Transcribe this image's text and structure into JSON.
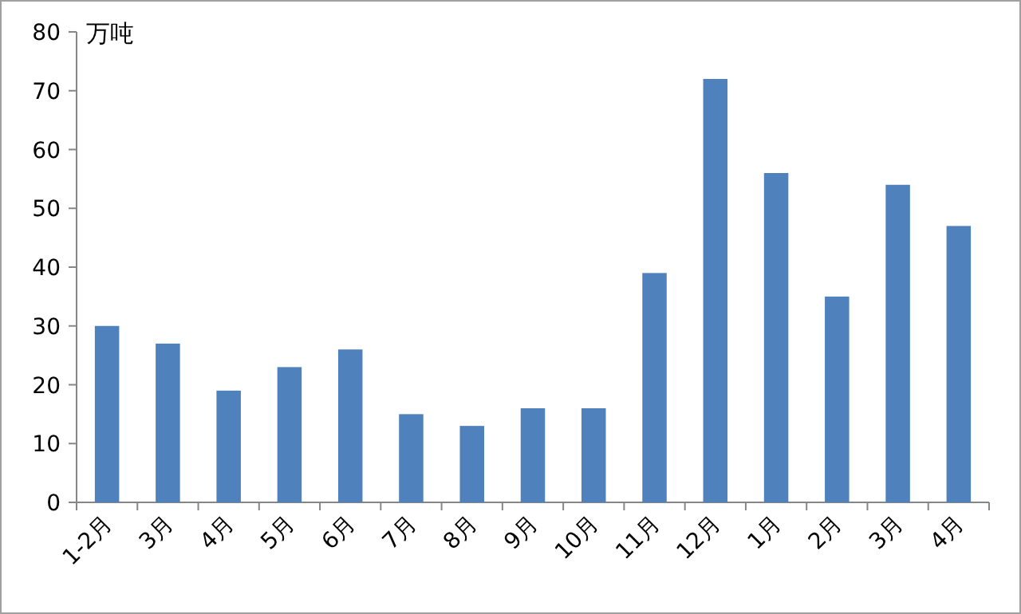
{
  "chart_data": {
    "type": "bar",
    "ylabel": "万吨",
    "categories": [
      "1-2月",
      "3月",
      "4月",
      "5月",
      "6月",
      "7月",
      "8月",
      "9月",
      "10月",
      "11月",
      "12月",
      "1月",
      "2月",
      "3月",
      "4月"
    ],
    "values": [
      30,
      27,
      19,
      23,
      26,
      15,
      13,
      16,
      16,
      39,
      72,
      56,
      35,
      54,
      47
    ],
    "color": "#4f81bd",
    "ylim": [
      0,
      80
    ],
    "yticks": [
      0,
      10,
      20,
      30,
      40,
      50,
      60,
      70,
      80
    ]
  }
}
